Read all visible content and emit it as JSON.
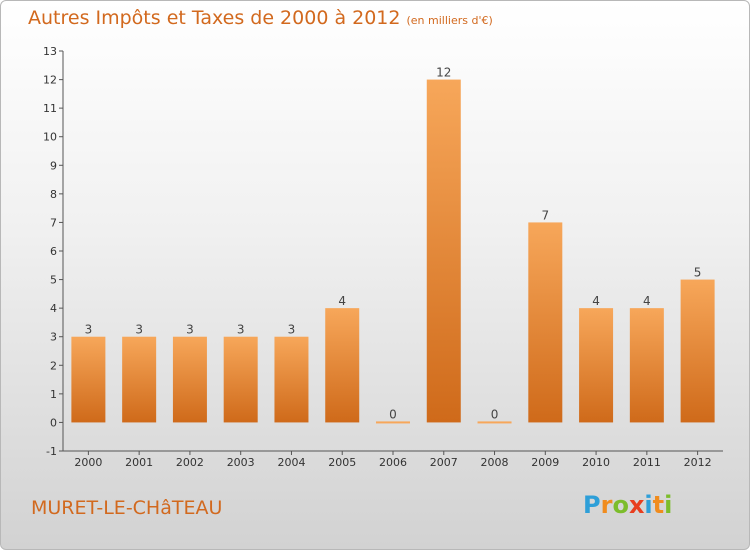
{
  "title": "Autres Impôts et Taxes de 2000 à 2012",
  "subtitle": "(en milliers d'€)",
  "commune": "MURET-LE-CHâTEAU",
  "logo": {
    "letters": [
      "P",
      "r",
      "o",
      "x",
      "i",
      "t",
      "i"
    ],
    "colors": [
      "#2e9fd8",
      "#f08c1e",
      "#7cbd2b",
      "#e83e1e",
      "#2e9fd8",
      "#f08c1e",
      "#7cbd2b"
    ]
  },
  "colors": {
    "bar_top": "#f7a75a",
    "bar_bottom": "#cf6a1a",
    "title": "#d2691e"
  },
  "chart_data": {
    "type": "bar",
    "title": "Autres Impôts et Taxes de 2000 à 2012",
    "subtitle": "(en milliers d'€)",
    "categories": [
      "2000",
      "2001",
      "2002",
      "2003",
      "2004",
      "2005",
      "2006",
      "2007",
      "2008",
      "2009",
      "2010",
      "2011",
      "2012"
    ],
    "values": [
      3,
      3,
      3,
      3,
      3,
      4,
      0,
      12,
      0,
      7,
      4,
      4,
      5
    ],
    "yticks": [
      -1,
      0,
      1,
      2,
      3,
      4,
      5,
      6,
      7,
      8,
      9,
      10,
      11,
      12,
      13
    ],
    "ylim": [
      -1,
      13
    ],
    "grid": false,
    "legend": "none"
  }
}
